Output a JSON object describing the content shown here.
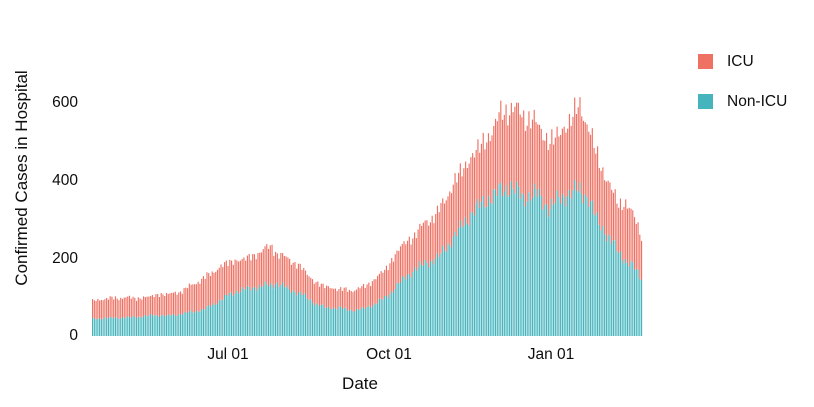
{
  "chart_data": {
    "type": "bar",
    "stacked": true,
    "title": "",
    "xlabel": "Date",
    "ylabel": "Confirmed Cases in Hospital",
    "x_tick_labels": [
      "Jul 01",
      "Oct 01",
      "Jan 01"
    ],
    "y_tick_labels": [
      "0",
      "200",
      "400",
      "600"
    ],
    "ylim": [
      0,
      640
    ],
    "grid": false,
    "axis_lines": false,
    "legend_position": "right",
    "bar_granularity": "daily",
    "series": [
      {
        "name": "ICU",
        "color": "#ee7163",
        "key": "icu"
      },
      {
        "name": "Non-ICU",
        "color": "#45b4bd",
        "key": "non_icu"
      }
    ],
    "points": [
      {
        "date": "2020-04-15",
        "non_icu": 44,
        "icu": 46
      },
      {
        "date": "2020-04-22",
        "non_icu": 46,
        "icu": 50
      },
      {
        "date": "2020-04-29",
        "non_icu": 47,
        "icu": 51
      },
      {
        "date": "2020-05-06",
        "non_icu": 48,
        "icu": 51
      },
      {
        "date": "2020-05-13",
        "non_icu": 50,
        "icu": 47
      },
      {
        "date": "2020-05-20",
        "non_icu": 54,
        "icu": 51
      },
      {
        "date": "2020-05-27",
        "non_icu": 52,
        "icu": 56
      },
      {
        "date": "2020-06-03",
        "non_icu": 56,
        "icu": 56
      },
      {
        "date": "2020-06-10",
        "non_icu": 62,
        "icu": 68
      },
      {
        "date": "2020-06-17",
        "non_icu": 68,
        "icu": 80
      },
      {
        "date": "2020-06-24",
        "non_icu": 85,
        "icu": 85
      },
      {
        "date": "2020-07-01",
        "non_icu": 105,
        "icu": 85
      },
      {
        "date": "2020-07-08",
        "non_icu": 118,
        "icu": 78
      },
      {
        "date": "2020-07-15",
        "non_icu": 124,
        "icu": 81
      },
      {
        "date": "2020-07-22",
        "non_icu": 130,
        "icu": 95
      },
      {
        "date": "2020-07-26",
        "non_icu": 132,
        "icu": 98
      },
      {
        "date": "2020-07-29",
        "non_icu": 136,
        "icu": 76
      },
      {
        "date": "2020-08-05",
        "non_icu": 120,
        "icu": 77
      },
      {
        "date": "2020-08-12",
        "non_icu": 108,
        "icu": 67
      },
      {
        "date": "2020-08-19",
        "non_icu": 85,
        "icu": 55
      },
      {
        "date": "2020-08-26",
        "non_icu": 72,
        "icu": 54
      },
      {
        "date": "2020-09-02",
        "non_icu": 73,
        "icu": 48
      },
      {
        "date": "2020-09-09",
        "non_icu": 66,
        "icu": 51
      },
      {
        "date": "2020-09-16",
        "non_icu": 70,
        "icu": 56
      },
      {
        "date": "2020-09-23",
        "non_icu": 84,
        "icu": 64
      },
      {
        "date": "2020-09-30",
        "non_icu": 104,
        "icu": 76
      },
      {
        "date": "2020-10-07",
        "non_icu": 140,
        "icu": 90
      },
      {
        "date": "2020-10-14",
        "non_icu": 168,
        "icu": 87
      },
      {
        "date": "2020-10-21",
        "non_icu": 187,
        "icu": 105
      },
      {
        "date": "2020-10-28",
        "non_icu": 200,
        "icu": 115
      },
      {
        "date": "2020-11-04",
        "non_icu": 240,
        "icu": 135
      },
      {
        "date": "2020-11-11",
        "non_icu": 283,
        "icu": 145
      },
      {
        "date": "2020-11-18",
        "non_icu": 325,
        "icu": 147
      },
      {
        "date": "2020-11-25",
        "non_icu": 350,
        "icu": 155
      },
      {
        "date": "2020-12-02",
        "non_icu": 372,
        "icu": 193
      },
      {
        "date": "2020-12-09",
        "non_icu": 385,
        "icu": 205
      },
      {
        "date": "2020-12-16",
        "non_icu": 356,
        "icu": 210
      },
      {
        "date": "2020-12-23",
        "non_icu": 370,
        "icu": 180
      },
      {
        "date": "2020-12-30",
        "non_icu": 330,
        "icu": 170
      },
      {
        "date": "2021-01-06",
        "non_icu": 355,
        "icu": 165
      },
      {
        "date": "2021-01-13",
        "non_icu": 372,
        "icu": 200
      },
      {
        "date": "2021-01-17",
        "non_icu": 375,
        "icu": 210
      },
      {
        "date": "2021-01-22",
        "non_icu": 355,
        "icu": 190
      },
      {
        "date": "2021-01-26",
        "non_icu": 305,
        "icu": 160
      },
      {
        "date": "2021-01-31",
        "non_icu": 270,
        "icu": 150
      },
      {
        "date": "2021-02-04",
        "non_icu": 245,
        "icu": 130
      },
      {
        "date": "2021-02-08",
        "non_icu": 215,
        "icu": 125
      },
      {
        "date": "2021-02-12",
        "non_icu": 195,
        "icu": 145
      },
      {
        "date": "2021-02-16",
        "non_icu": 180,
        "icu": 140
      },
      {
        "date": "2021-02-21",
        "non_icu": 150,
        "icu": 102
      }
    ]
  }
}
